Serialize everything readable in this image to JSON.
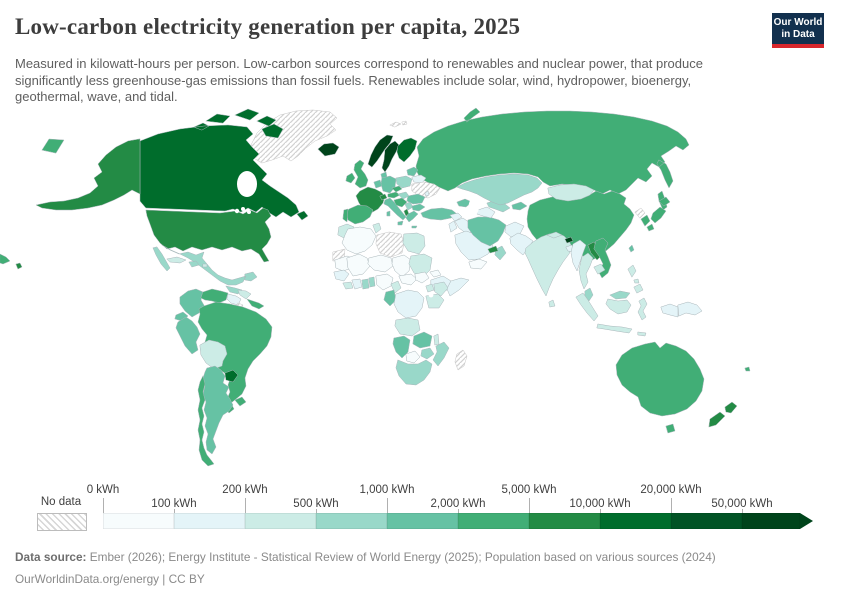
{
  "header": {
    "title": "Low-carbon electricity generation per capita, 2025",
    "subtitle": "Measured in kilowatt-hours per person. Low-carbon sources correspond to renewables and nuclear power, that produce significantly less greenhouse-gas emissions than fossil fuels. Renewables include solar, wind, hydropower, bioenergy, geothermal, wave, and tidal."
  },
  "logo": {
    "line1": "Our World",
    "line2": "in Data",
    "background": "#12304e",
    "accent": "#d8262c"
  },
  "legend": {
    "no_data_label": "No data",
    "tick_labels": [
      "0 kWh",
      "100 kWh",
      "200 kWh",
      "500 kWh",
      "1,000 kWh",
      "2,000 kWh",
      "5,000 kWh",
      "10,000 kWh",
      "20,000 kWh",
      "50,000 kWh"
    ]
  },
  "footer": {
    "source_label": "Data source:",
    "source_text": " Ember (2026); Energy Institute - Statistical Review of World Energy (2025); Population based on various sources (2024)",
    "license_line": "OurWorldinData.org/energy | CC BY"
  },
  "chart_data": {
    "type": "heatmap",
    "subtype": "world-choropleth-map",
    "title": "Low-carbon electricity generation per capita, 2025",
    "unit": "kWh",
    "bin_edges_kwh": [
      0,
      100,
      200,
      500,
      1000,
      2000,
      5000,
      10000,
      20000,
      50000
    ],
    "open_ended_above_kwh": 50000,
    "bin_labels": [
      "0–100 kWh",
      "100–200 kWh",
      "200–500 kWh",
      "500–1,000 kWh",
      "1,000–2,000 kWh",
      "2,000–5,000 kWh",
      "5,000–10,000 kWh",
      "10,000–20,000 kWh",
      "20,000–50,000 kWh",
      "> 50,000 kWh"
    ],
    "colors": [
      "#f7fcfd",
      "#e4f4f8",
      "#ccece6",
      "#99d8c9",
      "#66c2a4",
      "#41ae76",
      "#238b45",
      "#006d2c",
      "#015325",
      "#00441b"
    ],
    "no_data_style": "diagonal-hatch",
    "legend_position": "bottom",
    "regions": {
      "greenland": "no-data",
      "svalbard": "no-data",
      "ukraine": "no-data",
      "libya": "no-data",
      "western-sahara": "no-data",
      "madagascar": "no-data",
      "north-korea": "no-data",
      "french-guiana": "no-data",
      "iceland": 9,
      "norway": 9,
      "sweden": 9,
      "bhutan": 9,
      "canada": 7,
      "finland": 7,
      "paraguay": 7,
      "usa": 6,
      "alaska": 6,
      "hawaii": 6,
      "france": 6,
      "switzerland": 6,
      "albania": 6,
      "laos": 6,
      "new-zealand": 6,
      "uae": 6,
      "russia": 5,
      "wrap-chukotka": 5,
      "wrap-left": 5,
      "china": 5,
      "japan": 5,
      "south-korea": 5,
      "brazil": 5,
      "venezuela": 5,
      "australia": 5,
      "tasmania": 5,
      "spain": 5,
      "portugal": 5,
      "uk": 5,
      "ireland": 5,
      "chile": 5,
      "uruguay": 5,
      "austria": 5,
      "czechia": 5,
      "croatia-region": 5,
      "vietnam": 5,
      "costa-rica-panama": 5,
      "fiji": 5,
      "iran": 4,
      "germany": 4,
      "benelux": 4,
      "denmark": 4,
      "italy": 4,
      "baltics": 4,
      "romania": 4,
      "bulgaria": 4,
      "greece": 4,
      "turkey": 4,
      "caucasus": 4,
      "kyrgyzstan-tajikistan": 4,
      "argentina": 4,
      "colombia": 4,
      "peru": 4,
      "ecuador": 4,
      "gabon-congo": 4,
      "zambia": 4,
      "namibia": 4,
      "taiwan": 4,
      "mexico": 3,
      "guatemala-belize": 3,
      "kazakhstan": 3,
      "uzbekistan": 3,
      "oman": 3,
      "malaysia": 3,
      "ghana": 3,
      "togo-benin": 3,
      "mozambique": 3,
      "zimbabwe": 3,
      "south-africa": 3,
      "poland": 3,
      "hungary": 3,
      "serbia": 3,
      "hispaniola": 3,
      "cuba": 2,
      "bolivia": 2,
      "morocco": 2,
      "tunisia": 2,
      "egypt": 2,
      "sudan": 2,
      "kenya": 2,
      "uganda": 2,
      "tanzania": 2,
      "angola": 2,
      "cameroon": 2,
      "malawi": 2,
      "india": 2,
      "nepal": 2,
      "thailand": 2,
      "cambodia": 2,
      "indonesia": 2,
      "philippines": 2,
      "mongolia": 2,
      "sierra-liberia": 2,
      "sri-lanka": 2,
      "puerto-rico": 2,
      "honduras-nicaragua": 2,
      "guyana-suriname": 1,
      "belarus": 1,
      "moldova": 1,
      "turkmenistan": 1,
      "afghanistan": 1,
      "pakistan": 1,
      "bangladesh": 1,
      "myanmar": 1,
      "ethiopia": 1,
      "somalia": 1,
      "senegal-guinea": 1,
      "cote-divoire": 1,
      "dr-congo": 1,
      "syria": 1,
      "iraq": 1,
      "saudi-arabia": 1,
      "israel-jordan": 1,
      "papua-new-guinea": 1,
      "papua-indonesia": 1,
      "algeria": 0,
      "mauritania": 0,
      "mali": 0,
      "niger": 0,
      "chad": 0,
      "south-sudan": 0,
      "central-african-republic": 0,
      "nigeria": 0,
      "eritrea": 0,
      "yemen": 0,
      "botswana": 0
    }
  }
}
